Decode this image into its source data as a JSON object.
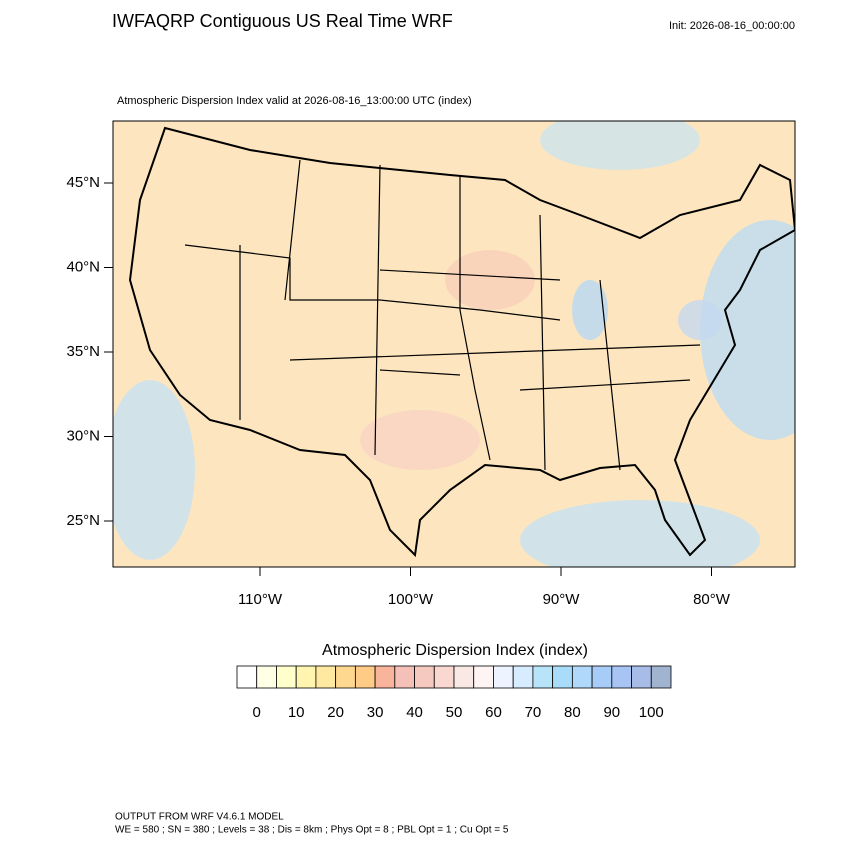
{
  "header": {
    "title": "IWFAQRP Contiguous US Real Time WRF",
    "init": "Init: 2026-08-16_00:00:00"
  },
  "map": {
    "subtitle": "Atmospheric Dispersion Index valid at 2026-08-16_13:00:00 UTC   (index)",
    "lat_ticks": [
      {
        "value": 25,
        "label": "25°N"
      },
      {
        "value": 30,
        "label": "30°N"
      },
      {
        "value": 35,
        "label": "35°N"
      },
      {
        "value": 40,
        "label": "40°N"
      },
      {
        "value": 45,
        "label": "45°N"
      }
    ],
    "lon_ticks": [
      {
        "value": -110,
        "label": "110°W"
      },
      {
        "value": -100,
        "label": "100°W"
      },
      {
        "value": -90,
        "label": "90°W"
      },
      {
        "value": -80,
        "label": "80°W"
      }
    ]
  },
  "colorbar": {
    "title": "Atmospheric Dispersion Index  (index)",
    "colors": [
      "#ffffff",
      "#ffffe6",
      "#ffffcc",
      "#fff5b0",
      "#ffe8a0",
      "#ffd890",
      "#ffcc88",
      "#f9b49c",
      "#f5c0b8",
      "#f5c8c0",
      "#f8d8d0",
      "#fae8e4",
      "#fff4f4",
      "#eef4ff",
      "#d8ecff",
      "#b8e4fa",
      "#a8dcf8",
      "#b0d8fa",
      "#a8ccf8",
      "#a8c4f4",
      "#a8bce8",
      "#a0b4d0"
    ],
    "ticks": [
      0,
      10,
      20,
      30,
      40,
      50,
      60,
      70,
      80,
      90,
      100
    ]
  },
  "footer": {
    "line1": "OUTPUT FROM WRF V4.6.1 MODEL",
    "line2": "WE = 580 ; SN = 380 ; Levels = 38 ; Dis = 8km ; Phys Opt = 8 ; PBL Opt = 1 ; Cu Opt = 5"
  }
}
